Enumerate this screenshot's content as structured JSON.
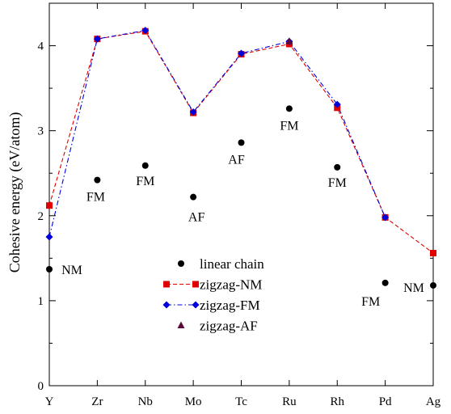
{
  "chart_data": {
    "type": "line",
    "title": "",
    "xlabel": "",
    "ylabel": "Cohesive energy (eV/atom)",
    "categories": [
      "Y",
      "Zr",
      "Nb",
      "Mo",
      "Tc",
      "Ru",
      "Rh",
      "Pd",
      "Ag"
    ],
    "ylim": [
      0,
      4.5
    ],
    "yticks": [
      "0",
      "1",
      "2",
      "3",
      "4"
    ],
    "grid": false,
    "legend_position": "center-bottom",
    "series": [
      {
        "name": "linear chain",
        "style": "points",
        "marker": "circle",
        "color": "#000000",
        "values": [
          1.37,
          2.42,
          2.59,
          2.22,
          2.86,
          3.26,
          2.57,
          1.21,
          1.18
        ],
        "labels": [
          "NM",
          "FM",
          "FM",
          "AF",
          "AF",
          "FM",
          "FM",
          "FM",
          "NM"
        ]
      },
      {
        "name": "zigzag-NM",
        "style": "line",
        "dash": "dashed",
        "marker": "square",
        "color": "#e00000",
        "values": [
          2.12,
          4.08,
          4.17,
          3.21,
          3.9,
          4.02,
          3.27,
          1.98,
          1.56
        ]
      },
      {
        "name": "zigzag-FM",
        "style": "line",
        "dash": "dash-dot",
        "marker": "diamond",
        "color": "#0000dd",
        "values": [
          1.75,
          4.08,
          4.18,
          3.22,
          3.91,
          4.05,
          3.31,
          1.98,
          null
        ]
      },
      {
        "name": "zigzag-AF",
        "style": "points",
        "marker": "triangle",
        "color": "#5c0a3a",
        "values": [
          null,
          null,
          null,
          null,
          null,
          4.05,
          null,
          null,
          null
        ]
      }
    ]
  }
}
